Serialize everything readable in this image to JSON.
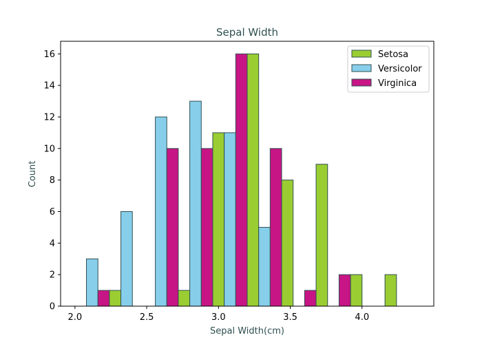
{
  "chart_data": {
    "type": "bar",
    "title": "Sepal Width",
    "xlabel": "Sepal Width(cm)",
    "ylabel": "Count",
    "bins": [
      [
        2.0,
        2.24
      ],
      [
        2.24,
        2.48
      ],
      [
        2.48,
        2.72
      ],
      [
        2.72,
        2.96
      ],
      [
        2.96,
        3.2
      ],
      [
        3.2,
        3.44
      ],
      [
        3.44,
        3.68
      ],
      [
        3.68,
        3.92
      ],
      [
        3.92,
        4.16
      ],
      [
        4.16,
        4.4
      ]
    ],
    "series": [
      {
        "name": "Setosa",
        "color": "#9acd32",
        "values": [
          0,
          1,
          0,
          1,
          11,
          16,
          8,
          9,
          2,
          2
        ]
      },
      {
        "name": "Versicolor",
        "color": "#87ceeb",
        "values": [
          3,
          6,
          12,
          13,
          11,
          5,
          0,
          0,
          0,
          0
        ]
      },
      {
        "name": "Virginica",
        "color": "#c71585",
        "values": [
          1,
          0,
          10,
          10,
          16,
          10,
          1,
          2,
          0,
          0
        ]
      }
    ],
    "xlim": [
      1.9,
      4.5
    ],
    "ylim": [
      0,
      16.8
    ],
    "xticks": [
      2.0,
      2.5,
      3.0,
      3.5,
      4.0
    ],
    "xtick_labels": [
      "2.0",
      "2.5",
      "3.0",
      "3.5",
      "4.0"
    ],
    "yticks": [
      0,
      2,
      4,
      6,
      8,
      10,
      12,
      14,
      16
    ],
    "ytick_labels": [
      "0",
      "2",
      "4",
      "6",
      "8",
      "10",
      "12",
      "14",
      "16"
    ],
    "legend_position": "top-right",
    "edge_color": "#2f4f4f",
    "grid": false
  }
}
